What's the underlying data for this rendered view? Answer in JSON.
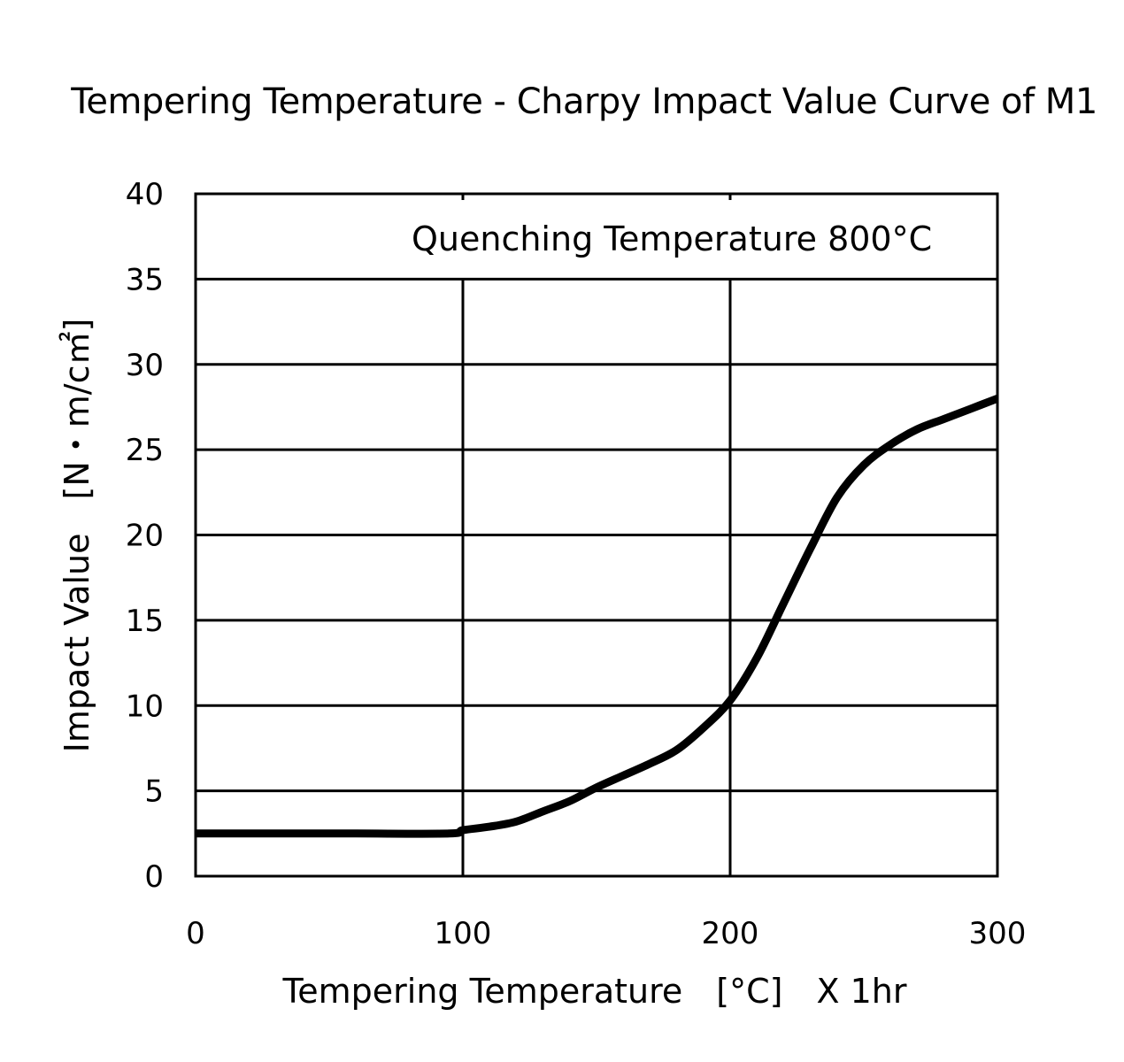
{
  "chart_data": {
    "type": "line",
    "title": "Tempering Temperature - Charpy Impact Value Curve of M1",
    "xlabel": "Tempering Temperature　[°C]　X 1hr",
    "ylabel": "Impact Value　[N・m/c㎡]",
    "annotation": "Quenching Temperature 800°C",
    "xlim": [
      0,
      300
    ],
    "ylim": [
      0,
      40
    ],
    "x_ticks": [
      0,
      100,
      200,
      300
    ],
    "y_ticks": [
      0,
      5,
      10,
      15,
      20,
      25,
      30,
      35,
      40
    ],
    "grid": true,
    "series": [
      {
        "name": "M1",
        "x": [
          0,
          30,
          60,
          95,
          100,
          110,
          120,
          130,
          140,
          150,
          160,
          170,
          180,
          190,
          200,
          210,
          220,
          230,
          240,
          250,
          260,
          270,
          280,
          290,
          300
        ],
        "y": [
          2.5,
          2.5,
          2.5,
          2.5,
          2.7,
          2.9,
          3.2,
          3.8,
          4.4,
          5.2,
          5.9,
          6.6,
          7.4,
          8.7,
          10.3,
          12.8,
          16.0,
          19.2,
          22.2,
          24.1,
          25.3,
          26.2,
          26.8,
          27.4,
          28.0
        ]
      }
    ]
  }
}
